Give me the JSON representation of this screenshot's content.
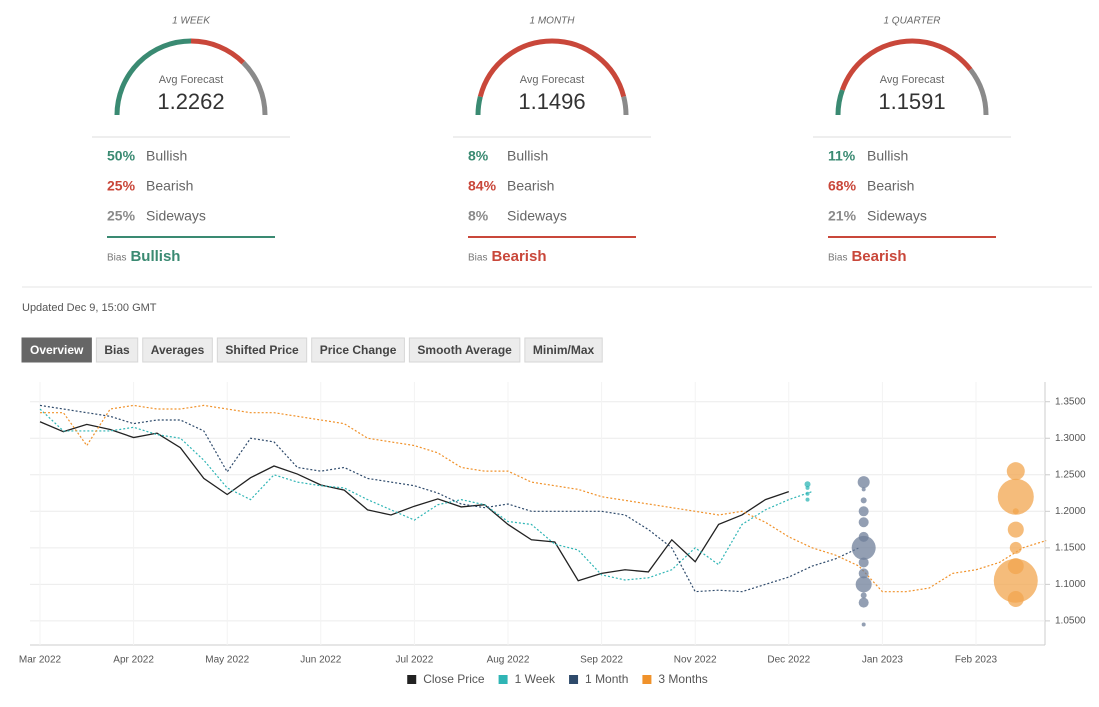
{
  "forecasts": [
    {
      "period": "1 WEEK",
      "avg_label": "Avg Forecast",
      "avg": "1.2262",
      "bias_label": "Bias",
      "bias": "Bullish",
      "bias_color": "#3a8a72",
      "rows": [
        {
          "value": 50,
          "value_label": "50%",
          "name": "Bullish",
          "color": "#3a8a72"
        },
        {
          "value": 25,
          "value_label": "25%",
          "name": "Bearish",
          "color": "#c9473a"
        },
        {
          "value": 25,
          "value_label": "25%",
          "name": "Sideways",
          "color": "#8a8a8a"
        }
      ]
    },
    {
      "period": "1 MONTH",
      "avg_label": "Avg Forecast",
      "avg": "1.1496",
      "bias_label": "Bias",
      "bias": "Bearish",
      "bias_color": "#c9473a",
      "rows": [
        {
          "value": 8,
          "value_label": "8%",
          "name": "Bullish",
          "color": "#3a8a72"
        },
        {
          "value": 84,
          "value_label": "84%",
          "name": "Bearish",
          "color": "#c9473a"
        },
        {
          "value": 8,
          "value_label": "8%",
          "name": "Sideways",
          "color": "#8a8a8a"
        }
      ]
    },
    {
      "period": "1 QUARTER",
      "avg_label": "Avg Forecast",
      "avg": "1.1591",
      "bias_label": "Bias",
      "bias": "Bearish",
      "bias_color": "#c9473a",
      "rows": [
        {
          "value": 11,
          "value_label": "11%",
          "name": "Bullish",
          "color": "#3a8a72"
        },
        {
          "value": 68,
          "value_label": "68%",
          "name": "Bearish",
          "color": "#c9473a"
        },
        {
          "value": 21,
          "value_label": "21%",
          "name": "Sideways",
          "color": "#8a8a8a"
        }
      ]
    }
  ],
  "updated": "Updated Dec 9, 15:00 GMT",
  "tabs": [
    "Overview",
    "Bias",
    "Averages",
    "Shifted Price",
    "Price Change",
    "Smooth Average",
    "Minim/Max"
  ],
  "chart_data": {
    "type": "line",
    "categories": [
      "Mar 2022",
      null,
      null,
      null,
      "Apr 2022",
      null,
      null,
      null,
      "May 2022",
      null,
      null,
      null,
      "Jun 2022",
      null,
      null,
      null,
      "Jul 2022",
      null,
      null,
      null,
      "Aug 2022",
      null,
      null,
      null,
      "Sep 2022",
      null,
      null,
      null,
      "Nov 2022",
      null,
      null,
      null,
      "Dec 2022",
      null,
      null,
      null,
      "Jan 2023",
      null,
      null,
      null,
      "Feb 2023",
      null,
      null,
      null
    ],
    "ylim": [
      1.017,
      1.377
    ],
    "yticks": [
      {
        "value": 1.05,
        "label": "1.0500"
      },
      {
        "value": 1.1,
        "label": "1.1000"
      },
      {
        "value": 1.15,
        "label": "1.1500"
      },
      {
        "value": 1.2,
        "label": "1.2000"
      },
      {
        "value": 1.25,
        "label": "1.2500"
      },
      {
        "value": 1.3,
        "label": "1.3000"
      },
      {
        "value": 1.35,
        "label": "1.3500"
      }
    ],
    "grid": true,
    "series": [
      {
        "name": "Close Price",
        "color": "#222222",
        "dash": "solid",
        "values": [
          1.3226,
          1.309,
          1.319,
          1.312,
          1.301,
          1.307,
          1.287,
          1.245,
          1.223,
          1.246,
          1.262,
          1.251,
          1.236,
          1.229,
          1.202,
          1.195,
          1.207,
          1.217,
          1.206,
          1.209,
          1.182,
          1.161,
          1.158,
          1.105,
          1.115,
          1.12,
          1.117,
          1.161,
          1.131,
          1.182,
          1.195,
          1.216,
          1.227,
          null,
          null,
          null,
          null,
          null,
          null,
          null,
          null,
          null,
          null,
          null
        ]
      },
      {
        "name": "1 Week",
        "color": "#2fb5b5",
        "dash": "dotted",
        "values": [
          1.34,
          1.31,
          1.31,
          1.31,
          1.315,
          1.305,
          1.3,
          1.27,
          1.232,
          1.216,
          1.25,
          1.24,
          1.235,
          1.232,
          1.216,
          1.202,
          1.188,
          1.209,
          1.216,
          1.209,
          1.186,
          1.182,
          1.155,
          1.147,
          1.113,
          1.106,
          1.109,
          1.12,
          1.15,
          1.127,
          1.182,
          1.202,
          1.216,
          1.227,
          null,
          null,
          null,
          null,
          null,
          null,
          null,
          null,
          null,
          null
        ]
      },
      {
        "name": "1 Month",
        "color": "#2e4a6b",
        "dash": "dotted",
        "values": [
          1.345,
          1.34,
          1.335,
          1.33,
          1.32,
          1.325,
          1.325,
          1.31,
          1.254,
          1.3,
          1.295,
          1.26,
          1.255,
          1.26,
          1.245,
          1.24,
          1.235,
          1.225,
          1.21,
          1.205,
          1.21,
          1.2,
          1.2,
          1.2,
          1.2,
          1.195,
          1.175,
          1.15,
          1.09,
          1.092,
          1.09,
          1.1,
          1.11,
          1.125,
          1.135,
          1.15,
          null,
          null,
          null,
          null,
          null,
          null,
          null,
          null
        ]
      },
      {
        "name": "3 Months",
        "color": "#f0922b",
        "dash": "dotted",
        "values": [
          1.335,
          1.335,
          1.29,
          1.34,
          1.345,
          1.34,
          1.34,
          1.345,
          1.34,
          1.335,
          1.335,
          1.33,
          1.325,
          1.32,
          1.3,
          1.295,
          1.29,
          1.28,
          1.26,
          1.255,
          1.255,
          1.24,
          1.235,
          1.23,
          1.22,
          1.215,
          1.21,
          1.205,
          1.2,
          1.195,
          1.2,
          1.185,
          1.165,
          1.15,
          1.14,
          1.125,
          1.09,
          1.09,
          1.095,
          1.115,
          1.12,
          1.13,
          1.15,
          1.16
        ]
      }
    ],
    "forecast_points": [
      {
        "x": 32.8,
        "color": "#2fb5b5",
        "values": [
          1.237,
          1.232,
          1.224,
          1.216
        ],
        "sizes": [
          3,
          2,
          2,
          2
        ]
      },
      {
        "x": 35.2,
        "color": "#6f7f99",
        "values": [
          1.24,
          1.23,
          1.215,
          1.2,
          1.185,
          1.165,
          1.15,
          1.13,
          1.115,
          1.1,
          1.085,
          1.075,
          1.045
        ],
        "sizes": [
          6,
          2,
          3,
          5,
          5,
          5,
          12,
          5,
          5,
          8,
          3,
          5,
          2
        ]
      },
      {
        "x": 41.7,
        "color": "#f2a54f",
        "values": [
          1.255,
          1.22,
          1.2,
          1.175,
          1.15,
          1.125,
          1.105,
          1.08
        ],
        "sizes": [
          9,
          18,
          3,
          8,
          6,
          8,
          22,
          8
        ]
      }
    ]
  }
}
